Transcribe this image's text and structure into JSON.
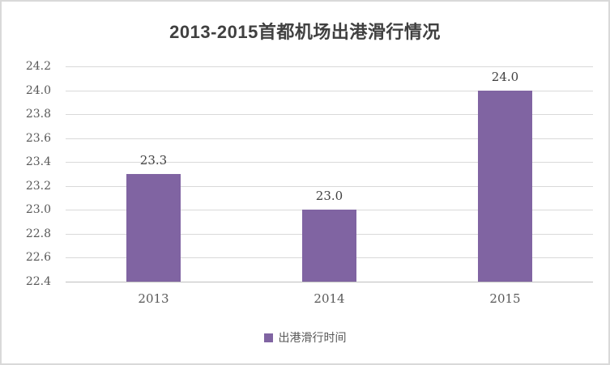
{
  "chart_data": {
    "type": "bar",
    "title": "2013-2015首都机场出港滑行情况",
    "categories": [
      "2013",
      "2014",
      "2015"
    ],
    "series": [
      {
        "name": "出港滑行时间",
        "values": [
          23.3,
          23.0,
          24.0
        ]
      }
    ],
    "data_labels": [
      "23.3",
      "23.0",
      "24.0"
    ],
    "xlabel": "",
    "ylabel": "",
    "ylim": [
      22.4,
      24.2
    ],
    "ytick_step": 0.2,
    "yticks": [
      "22.4",
      "22.6",
      "22.8",
      "23.0",
      "23.2",
      "23.4",
      "23.6",
      "23.8",
      "24.0",
      "24.2"
    ],
    "grid": true,
    "legend": {
      "position": "bottom",
      "label": "出港滑行时间"
    },
    "colors": {
      "bar": "#8064a2",
      "title": "#404040",
      "tick": "#595959",
      "gridline": "#d9d9d9",
      "axis": "#bfbfbf"
    }
  }
}
